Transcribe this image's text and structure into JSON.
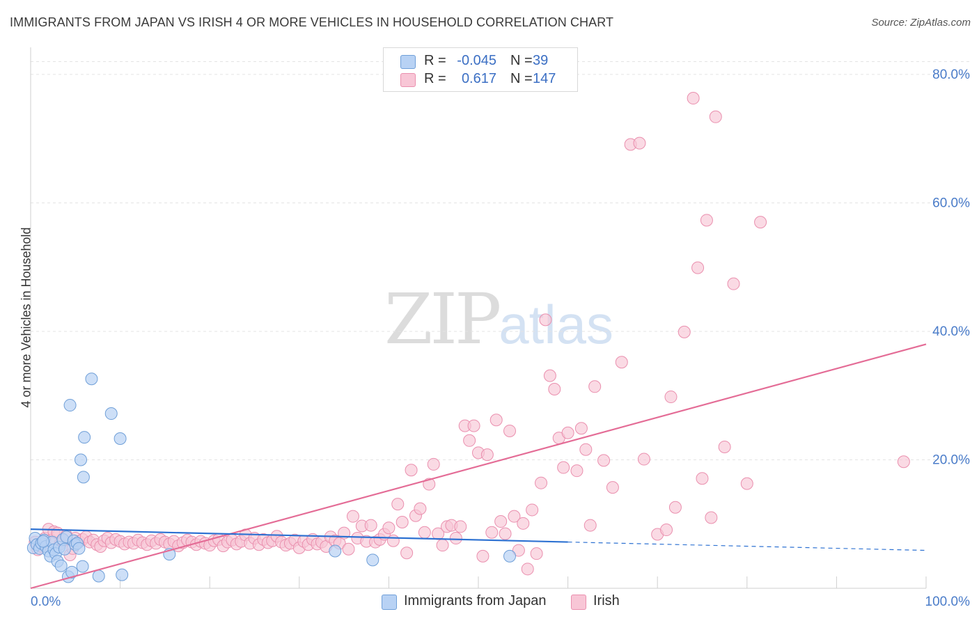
{
  "title": "IMMIGRANTS FROM JAPAN VS IRISH 4 OR MORE VEHICLES IN HOUSEHOLD CORRELATION CHART",
  "source": "Source: ZipAtlas.com",
  "watermark": {
    "zip": "ZIP",
    "atlas": "atlas"
  },
  "colors": {
    "japan_fill": "#b8d2f4",
    "japan_stroke": "#6f9fd8",
    "japan_line": "#2e72d2",
    "irish_fill": "#f8c6d6",
    "irish_stroke": "#ea8fae",
    "irish_line": "#e46c96",
    "tick_label": "#4a7cc9",
    "grid": "#e3e3e3"
  },
  "legend_top": [
    {
      "r_label": "R =",
      "r_value": "-0.045",
      "n_label": "N =",
      "n_value": "39"
    },
    {
      "r_label": "R =",
      "r_value": "0.617",
      "n_label": "N =",
      "n_value": "147"
    }
  ],
  "legend_bottom": [
    "Immigrants from Japan",
    "Irish"
  ],
  "chart_data": {
    "type": "scatter",
    "title": "IMMIGRANTS FROM JAPAN VS IRISH 4 OR MORE VEHICLES IN HOUSEHOLD CORRELATION CHART",
    "xlabel": "",
    "ylabel": "4 or more Vehicles in Household",
    "xlim": [
      0,
      100
    ],
    "ylim": [
      0,
      84
    ],
    "x_tick_labels": [
      "0.0%",
      "100.0%"
    ],
    "y_ticks": [
      20,
      40,
      60,
      80
    ],
    "y_tick_labels": [
      "20.0%",
      "40.0%",
      "60.0%",
      "80.0%"
    ],
    "grid": "horizontal dashed",
    "series": [
      {
        "name": "Immigrants from Japan",
        "R": -0.045,
        "N": 39,
        "trend": {
          "x0": 0,
          "y0": 9.2,
          "x1": 60,
          "y1": 7.2,
          "dashed_to_x": 100,
          "dashed_to_y": 5.9
        },
        "points": [
          [
            0.3,
            6.3
          ],
          [
            0.5,
            7.8
          ],
          [
            0.7,
            6.8
          ],
          [
            1.0,
            6.2
          ],
          [
            1.2,
            7.0
          ],
          [
            1.5,
            7.5
          ],
          [
            1.7,
            6.5
          ],
          [
            2.0,
            5.8
          ],
          [
            2.2,
            5.0
          ],
          [
            2.4,
            7.2
          ],
          [
            2.6,
            6.0
          ],
          [
            2.8,
            5.4
          ],
          [
            3.0,
            4.2
          ],
          [
            3.2,
            6.4
          ],
          [
            3.4,
            3.5
          ],
          [
            3.6,
            7.6
          ],
          [
            3.8,
            6.1
          ],
          [
            4.0,
            8.0
          ],
          [
            4.2,
            1.8
          ],
          [
            4.4,
            28.5
          ],
          [
            4.6,
            2.5
          ],
          [
            4.8,
            7.4
          ],
          [
            5.0,
            6.8
          ],
          [
            5.2,
            7.0
          ],
          [
            5.4,
            6.2
          ],
          [
            5.6,
            20.0
          ],
          [
            5.8,
            3.4
          ],
          [
            5.9,
            17.3
          ],
          [
            6.0,
            23.5
          ],
          [
            6.8,
            32.6
          ],
          [
            7.6,
            1.9
          ],
          [
            9.0,
            27.2
          ],
          [
            10.0,
            23.3
          ],
          [
            10.2,
            2.1
          ],
          [
            15.5,
            5.3
          ],
          [
            34.0,
            5.8
          ],
          [
            38.2,
            4.4
          ],
          [
            53.5,
            5.0
          ],
          [
            1.4,
            7.3
          ]
        ]
      },
      {
        "name": "Irish",
        "R": 0.617,
        "N": 147,
        "trend": {
          "x0": 0,
          "y0": 0,
          "x1": 100,
          "y1": 38
        },
        "points": [
          [
            0.5,
            7.2
          ],
          [
            0.8,
            6.0
          ],
          [
            1.2,
            6.5
          ],
          [
            1.6,
            7.8
          ],
          [
            2.0,
            9.2
          ],
          [
            2.3,
            7.5
          ],
          [
            2.6,
            8.8
          ],
          [
            3.0,
            8.6
          ],
          [
            3.3,
            6.9
          ],
          [
            3.6,
            7.4
          ],
          [
            4.0,
            8.2
          ],
          [
            4.4,
            5.2
          ],
          [
            4.7,
            6.2
          ],
          [
            5.0,
            7.8
          ],
          [
            5.4,
            7.3
          ],
          [
            5.8,
            7.6
          ],
          [
            6.2,
            8.0
          ],
          [
            6.6,
            7.2
          ],
          [
            7.0,
            7.5
          ],
          [
            7.4,
            6.8
          ],
          [
            7.8,
            6.5
          ],
          [
            8.2,
            7.4
          ],
          [
            8.6,
            7.8
          ],
          [
            9.0,
            7.1
          ],
          [
            9.5,
            7.6
          ],
          [
            10.0,
            7.3
          ],
          [
            10.5,
            6.9
          ],
          [
            11.0,
            7.2
          ],
          [
            11.5,
            7.0
          ],
          [
            12.0,
            7.5
          ],
          [
            12.5,
            7.1
          ],
          [
            13.0,
            6.8
          ],
          [
            13.5,
            7.4
          ],
          [
            14.0,
            7.0
          ],
          [
            14.5,
            7.6
          ],
          [
            15.0,
            7.2
          ],
          [
            15.5,
            6.9
          ],
          [
            16.0,
            7.3
          ],
          [
            16.5,
            6.6
          ],
          [
            17.0,
            7.1
          ],
          [
            17.5,
            7.5
          ],
          [
            18.0,
            7.2
          ],
          [
            18.5,
            6.8
          ],
          [
            19.0,
            7.3
          ],
          [
            19.5,
            7.0
          ],
          [
            20.0,
            6.7
          ],
          [
            20.5,
            7.4
          ],
          [
            21.0,
            7.6
          ],
          [
            21.5,
            6.6
          ],
          [
            22.0,
            7.2
          ],
          [
            22.5,
            7.5
          ],
          [
            23.0,
            6.9
          ],
          [
            23.5,
            7.3
          ],
          [
            24.0,
            8.3
          ],
          [
            24.5,
            7.0
          ],
          [
            25.0,
            7.8
          ],
          [
            25.5,
            6.8
          ],
          [
            26.0,
            7.6
          ],
          [
            26.5,
            7.1
          ],
          [
            27.0,
            7.4
          ],
          [
            27.5,
            8.1
          ],
          [
            28.0,
            7.2
          ],
          [
            28.5,
            6.7
          ],
          [
            29.0,
            7.0
          ],
          [
            29.5,
            7.5
          ],
          [
            30.0,
            6.3
          ],
          [
            30.5,
            7.3
          ],
          [
            31.0,
            6.8
          ],
          [
            31.5,
            7.6
          ],
          [
            32.0,
            6.9
          ],
          [
            32.5,
            7.2
          ],
          [
            33.0,
            6.5
          ],
          [
            33.5,
            8.0
          ],
          [
            34.0,
            7.4
          ],
          [
            34.5,
            7.0
          ],
          [
            35.0,
            8.6
          ],
          [
            35.5,
            6.1
          ],
          [
            36.0,
            11.2
          ],
          [
            36.5,
            7.8
          ],
          [
            37.0,
            9.7
          ],
          [
            37.5,
            7.3
          ],
          [
            38.0,
            9.8
          ],
          [
            38.5,
            7.2
          ],
          [
            39.0,
            7.6
          ],
          [
            39.5,
            8.4
          ],
          [
            40.0,
            9.4
          ],
          [
            40.5,
            7.4
          ],
          [
            41.0,
            13.1
          ],
          [
            41.5,
            10.3
          ],
          [
            42.0,
            5.5
          ],
          [
            42.5,
            18.4
          ],
          [
            43.0,
            11.3
          ],
          [
            43.5,
            12.4
          ],
          [
            44.0,
            8.7
          ],
          [
            44.5,
            16.2
          ],
          [
            45.0,
            19.3
          ],
          [
            45.5,
            8.5
          ],
          [
            46.0,
            6.7
          ],
          [
            46.5,
            9.6
          ],
          [
            47.0,
            9.8
          ],
          [
            47.5,
            7.8
          ],
          [
            48.0,
            9.6
          ],
          [
            48.5,
            25.3
          ],
          [
            49.0,
            23.0
          ],
          [
            49.5,
            25.3
          ],
          [
            50.0,
            21.1
          ],
          [
            50.5,
            5.0
          ],
          [
            51.0,
            20.8
          ],
          [
            51.5,
            8.7
          ],
          [
            52.0,
            26.2
          ],
          [
            52.5,
            10.4
          ],
          [
            53.0,
            8.5
          ],
          [
            53.5,
            24.5
          ],
          [
            54.0,
            11.2
          ],
          [
            54.5,
            5.9
          ],
          [
            55.0,
            10.1
          ],
          [
            55.5,
            3.0
          ],
          [
            56.0,
            12.2
          ],
          [
            56.5,
            5.4
          ],
          [
            57.0,
            16.4
          ],
          [
            57.5,
            41.8
          ],
          [
            58.0,
            33.1
          ],
          [
            58.5,
            31.0
          ],
          [
            59.0,
            23.4
          ],
          [
            59.5,
            18.8
          ],
          [
            60.0,
            24.2
          ],
          [
            61.0,
            18.3
          ],
          [
            61.5,
            24.9
          ],
          [
            62.0,
            21.6
          ],
          [
            62.5,
            9.8
          ],
          [
            63.0,
            31.4
          ],
          [
            64.0,
            19.9
          ],
          [
            65.0,
            15.7
          ],
          [
            66.0,
            35.2
          ],
          [
            67.0,
            69.1
          ],
          [
            68.0,
            69.3
          ],
          [
            68.5,
            20.1
          ],
          [
            70.0,
            8.4
          ],
          [
            71.0,
            9.1
          ],
          [
            71.5,
            29.8
          ],
          [
            72.0,
            12.6
          ],
          [
            73.0,
            39.9
          ],
          [
            74.0,
            76.3
          ],
          [
            74.5,
            49.9
          ],
          [
            75.0,
            17.1
          ],
          [
            75.5,
            57.3
          ],
          [
            76.0,
            11.0
          ],
          [
            76.5,
            73.4
          ],
          [
            77.5,
            22.0
          ],
          [
            78.5,
            47.4
          ],
          [
            80.0,
            16.3
          ],
          [
            81.5,
            57.0
          ],
          [
            97.5,
            19.7
          ]
        ]
      }
    ]
  }
}
